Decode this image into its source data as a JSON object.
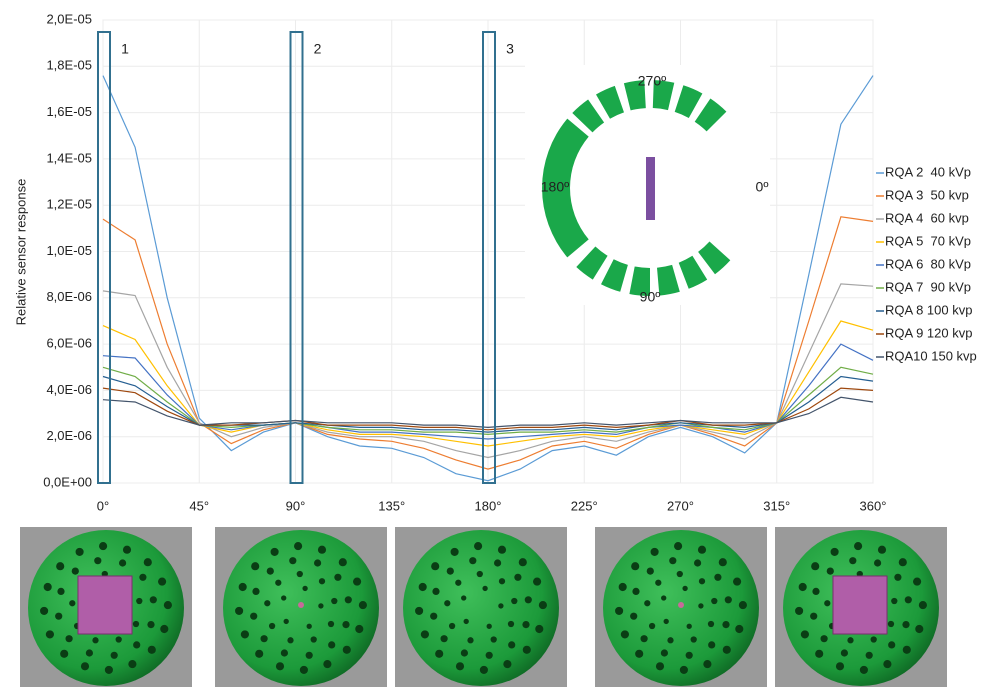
{
  "chart_data": {
    "type": "line",
    "y_label": "Relative sensor response",
    "x": [
      0,
      15,
      30,
      45,
      60,
      75,
      90,
      105,
      120,
      135,
      150,
      165,
      180,
      195,
      210,
      225,
      240,
      255,
      270,
      285,
      300,
      315,
      330,
      345,
      360
    ],
    "xlim": [
      0,
      360
    ],
    "xticks": [
      {
        "value": 0,
        "label": "0°"
      },
      {
        "value": 45,
        "label": "45°"
      },
      {
        "value": 90,
        "label": "90°"
      },
      {
        "value": 135,
        "label": "135°"
      },
      {
        "value": 180,
        "label": "180°"
      },
      {
        "value": 225,
        "label": "225°"
      },
      {
        "value": 270,
        "label": "270°"
      },
      {
        "value": 315,
        "label": "315°"
      },
      {
        "value": 360,
        "label": "360°"
      }
    ],
    "ylim": [
      0,
      2e-05
    ],
    "yticks": [
      {
        "value": 0,
        "label": "0,0E+00"
      },
      {
        "value": 2e-06,
        "label": "2,0E-06"
      },
      {
        "value": 4e-06,
        "label": "4,0E-06"
      },
      {
        "value": 6e-06,
        "label": "6,0E-06"
      },
      {
        "value": 8e-06,
        "label": "8,0E-06"
      },
      {
        "value": 1e-05,
        "label": "1,0E-05"
      },
      {
        "value": 1.2e-05,
        "label": "1,2E-05"
      },
      {
        "value": 1.4e-05,
        "label": "1,4E-05"
      },
      {
        "value": 1.6e-05,
        "label": "1,6E-05"
      },
      {
        "value": 1.8e-05,
        "label": "1,8E-05"
      },
      {
        "value": 2e-05,
        "label": "2,0E-05"
      }
    ],
    "grid": true,
    "legend": "right",
    "series": [
      {
        "name": "RQA 2  40 kVp",
        "color": "#5b9bd5",
        "values": [
          1.76e-05,
          1.45e-05,
          8e-06,
          2.8e-06,
          1.4e-06,
          2.2e-06,
          2.6e-06,
          2e-06,
          1.6e-06,
          1.5e-06,
          1.1e-06,
          4e-07,
          1e-07,
          6e-07,
          1.4e-06,
          1.6e-06,
          1.2e-06,
          2e-06,
          2.4e-06,
          2e-06,
          1.3e-06,
          2.6e-06,
          9e-06,
          1.55e-05,
          1.76e-05
        ]
      },
      {
        "name": "RQA 3  50 kvp",
        "color": "#ed7d31",
        "values": [
          1.14e-05,
          1.05e-05,
          6e-06,
          2.6e-06,
          1.7e-06,
          2.3e-06,
          2.6e-06,
          2.1e-06,
          1.9e-06,
          1.8e-06,
          1.5e-06,
          1e-06,
          6e-07,
          1e-06,
          1.6e-06,
          1.8e-06,
          1.5e-06,
          2.1e-06,
          2.5e-06,
          2.1e-06,
          1.6e-06,
          2.6e-06,
          7e-06,
          1.15e-05,
          1.13e-05
        ]
      },
      {
        "name": "RQA 4  60 kvp",
        "color": "#a5a5a5",
        "values": [
          8.3e-06,
          8.1e-06,
          5e-06,
          2.6e-06,
          2e-06,
          2.4e-06,
          2.6e-06,
          2.2e-06,
          2e-06,
          2e-06,
          1.8e-06,
          1.4e-06,
          1.1e-06,
          1.4e-06,
          1.8e-06,
          2e-06,
          1.8e-06,
          2.2e-06,
          2.5e-06,
          2.2e-06,
          1.9e-06,
          2.6e-06,
          5.6e-06,
          8.6e-06,
          8.5e-06
        ]
      },
      {
        "name": "RQA 5  70 kVp",
        "color": "#ffc000",
        "values": [
          6.8e-06,
          6.2e-06,
          4.2e-06,
          2.5e-06,
          2.2e-06,
          2.5e-06,
          2.6e-06,
          2.3e-06,
          2.1e-06,
          2.1e-06,
          2e-06,
          1.8e-06,
          1.6e-06,
          1.8e-06,
          2e-06,
          2.1e-06,
          2e-06,
          2.3e-06,
          2.5e-06,
          2.3e-06,
          2.1e-06,
          2.6e-06,
          4.8e-06,
          7e-06,
          6.6e-06
        ]
      },
      {
        "name": "RQA 6  80 kVp",
        "color": "#4472c4",
        "values": [
          5.5e-06,
          5.4e-06,
          3.8e-06,
          2.5e-06,
          2.3e-06,
          2.5e-06,
          2.6e-06,
          2.4e-06,
          2.2e-06,
          2.2e-06,
          2.1e-06,
          2e-06,
          1.9e-06,
          2e-06,
          2.1e-06,
          2.2e-06,
          2.1e-06,
          2.4e-06,
          2.5e-06,
          2.4e-06,
          2.2e-06,
          2.6e-06,
          4.2e-06,
          6e-06,
          5.3e-06
        ]
      },
      {
        "name": "RQA 7  90 kVp",
        "color": "#70ad47",
        "values": [
          5e-06,
          4.6e-06,
          3.5e-06,
          2.5e-06,
          2.4e-06,
          2.5e-06,
          2.6e-06,
          2.4e-06,
          2.3e-06,
          2.3e-06,
          2.2e-06,
          2.2e-06,
          2.1e-06,
          2.2e-06,
          2.2e-06,
          2.3e-06,
          2.2e-06,
          2.4e-06,
          2.6e-06,
          2.4e-06,
          2.3e-06,
          2.6e-06,
          3.8e-06,
          5e-06,
          4.7e-06
        ]
      },
      {
        "name": "RQA 8 100 kvp",
        "color": "#255e91",
        "values": [
          4.6e-06,
          4.2e-06,
          3.3e-06,
          2.5e-06,
          2.5e-06,
          2.5e-06,
          2.6e-06,
          2.5e-06,
          2.4e-06,
          2.4e-06,
          2.3e-06,
          2.3e-06,
          2.2e-06,
          2.3e-06,
          2.3e-06,
          2.4e-06,
          2.3e-06,
          2.5e-06,
          2.6e-06,
          2.5e-06,
          2.4e-06,
          2.6e-06,
          3.5e-06,
          4.6e-06,
          4.4e-06
        ]
      },
      {
        "name": "RQA 9 120 kvp",
        "color": "#9e480e",
        "values": [
          4.1e-06,
          3.9e-06,
          3.1e-06,
          2.5e-06,
          2.5e-06,
          2.6e-06,
          2.7e-06,
          2.5e-06,
          2.5e-06,
          2.5e-06,
          2.4e-06,
          2.4e-06,
          2.3e-06,
          2.4e-06,
          2.4e-06,
          2.5e-06,
          2.4e-06,
          2.5e-06,
          2.7e-06,
          2.5e-06,
          2.5e-06,
          2.6e-06,
          3.2e-06,
          4.1e-06,
          4e-06
        ]
      },
      {
        "name": "RQA10 150 kvp",
        "color": "#43546b",
        "values": [
          3.6e-06,
          3.5e-06,
          2.9e-06,
          2.5e-06,
          2.6e-06,
          2.6e-06,
          2.7e-06,
          2.6e-06,
          2.6e-06,
          2.6e-06,
          2.5e-06,
          2.5e-06,
          2.4e-06,
          2.5e-06,
          2.5e-06,
          2.6e-06,
          2.5e-06,
          2.6e-06,
          2.7e-06,
          2.6e-06,
          2.6e-06,
          2.6e-06,
          3e-06,
          3.7e-06,
          3.5e-06
        ]
      }
    ],
    "highlights": [
      {
        "label": "1",
        "x": 0
      },
      {
        "label": "2",
        "x": 90
      },
      {
        "label": "3",
        "x": 180
      }
    ],
    "inset": {
      "labels": [
        "270º",
        "180º",
        "0º",
        "90º"
      ]
    }
  }
}
